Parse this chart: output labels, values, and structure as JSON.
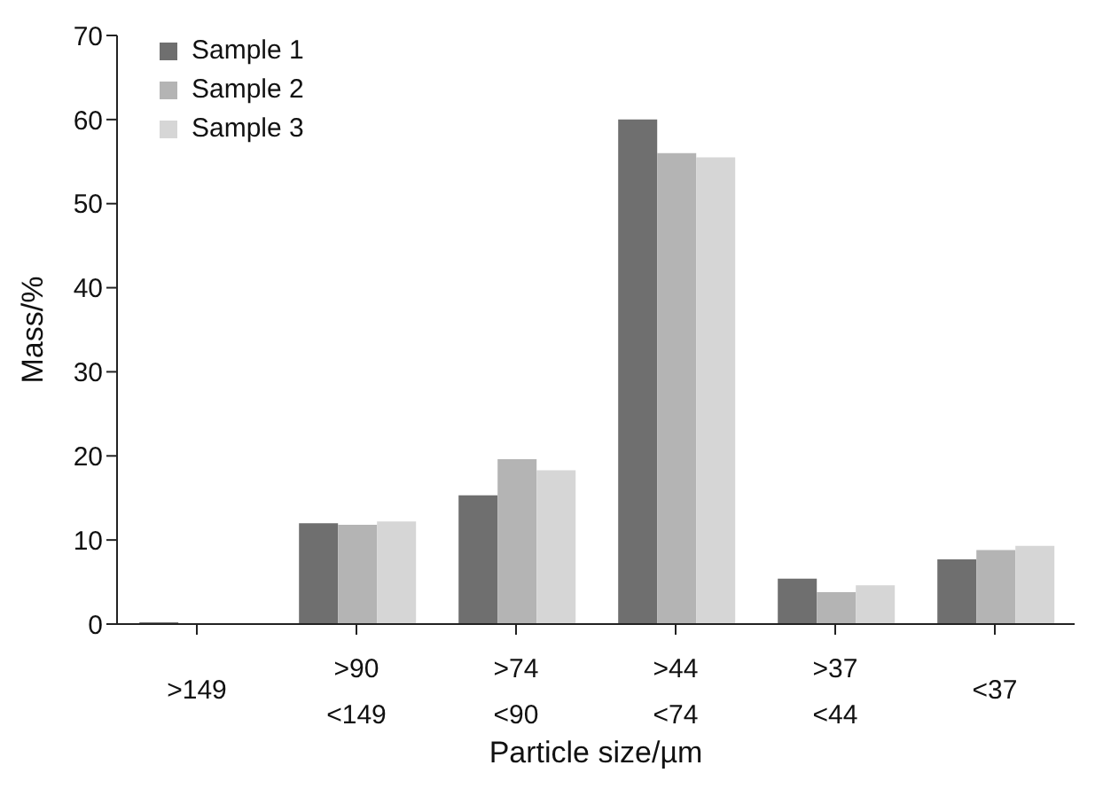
{
  "chart_data": {
    "type": "bar",
    "xlabel": "Particle size/µm",
    "ylabel": "Mass/%",
    "categories": [
      ">149",
      ">90\n<149",
      ">74\n<90",
      ">44\n<74",
      ">37\n<44",
      "<37"
    ],
    "series": [
      {
        "name": "Sample 1",
        "color": "#6f6f6f",
        "values": [
          0.2,
          12,
          15.3,
          60,
          5.4,
          7.7
        ]
      },
      {
        "name": "Sample 2",
        "color": "#b4b4b4",
        "values": [
          null,
          11.8,
          19.6,
          56,
          3.8,
          8.8
        ]
      },
      {
        "name": "Sample 3",
        "color": "#d6d6d6",
        "values": [
          null,
          12.2,
          18.3,
          55.5,
          4.6,
          9.3
        ]
      }
    ],
    "ylim": [
      0,
      70
    ],
    "yticks": [
      0,
      10,
      20,
      30,
      40,
      50,
      60,
      70
    ],
    "grid": false,
    "legend": "top left"
  }
}
